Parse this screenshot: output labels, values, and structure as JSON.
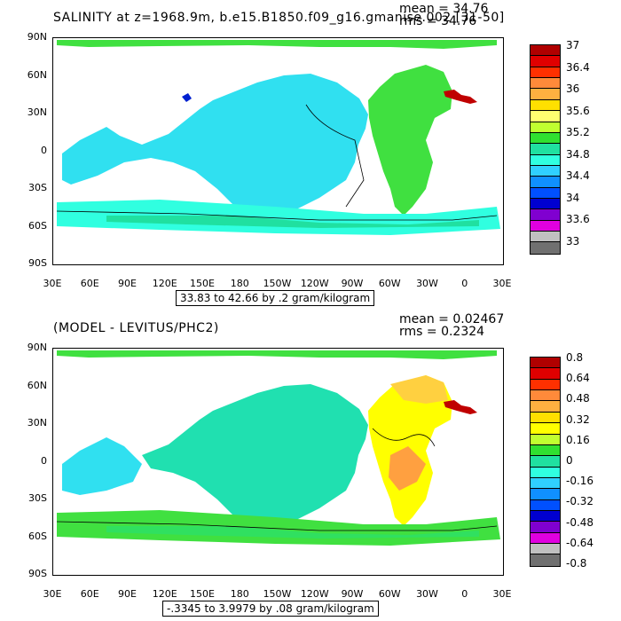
{
  "panel1": {
    "title": "SALINITY at z=1968.9m, b.e15.B1850.f09_g16.gmanise.002 [31-50]",
    "mean": "mean = 34.76",
    "rms": "rms = 34.76",
    "range": "33.83 to 42.66 by .2 gram/kilogram",
    "colorbar_labels": [
      "37",
      "36.4",
      "36",
      "35.6",
      "35.2",
      "34.8",
      "34.4",
      "34",
      "33.6",
      "33"
    ],
    "colorbar_colors": [
      "#b00000",
      "#e00000",
      "#ff3000",
      "#ff8a3a",
      "#ffb040",
      "#ffe000",
      "#ffff70",
      "#c0ff30",
      "#30e030",
      "#20e0a0",
      "#30ffe0",
      "#30d0ff",
      "#1090ff",
      "#0050ff",
      "#0000d0",
      "#8000d0",
      "#e000e0",
      "#c0c0c0",
      "#707070"
    ]
  },
  "panel2": {
    "title": "(MODEL - LEVITUS/PHC2)",
    "mean": "mean = 0.02467",
    "rms": "rms = 0.2324",
    "range": "-.3345 to 3.9979 by .08 gram/kilogram",
    "colorbar_labels": [
      "0.8",
      "0.64",
      "0.48",
      "0.32",
      "0.16",
      "0",
      "-0.16",
      "-0.32",
      "-0.48",
      "-0.64",
      "-0.8"
    ],
    "colorbar_colors": [
      "#b00000",
      "#e00000",
      "#ff3000",
      "#ff8a3a",
      "#ffb040",
      "#ffe000",
      "#ffff00",
      "#c0ff30",
      "#30e030",
      "#20e0a0",
      "#30ffe0",
      "#30d0ff",
      "#1090ff",
      "#0050ff",
      "#0000d0",
      "#8000d0",
      "#e000e0",
      "#c0c0c0",
      "#707070"
    ]
  },
  "axes": {
    "y_labels": [
      "90N",
      "60N",
      "30N",
      "0",
      "30S",
      "60S",
      "90S"
    ],
    "x_labels": [
      "30E",
      "60E",
      "90E",
      "120E",
      "150E",
      "180",
      "150W",
      "120W",
      "90W",
      "60W",
      "30W",
      "0",
      "30E"
    ]
  },
  "colors": {
    "pac1": "#30e0f0",
    "atl1": "#40e040",
    "arctic1": "#40e040",
    "so1": "#30ffe0",
    "so1b": "#20e0a0",
    "pac2": "#20e0b0",
    "atl2": "#ffff00",
    "atl2b": "#ffd040",
    "atl2c": "#ffa040",
    "so2": "#40e040",
    "so2b": "#30e060",
    "arctic2": "#40e040",
    "ind2": "#30e0f0",
    "red": "#c00000",
    "blue": "#0020d0"
  }
}
